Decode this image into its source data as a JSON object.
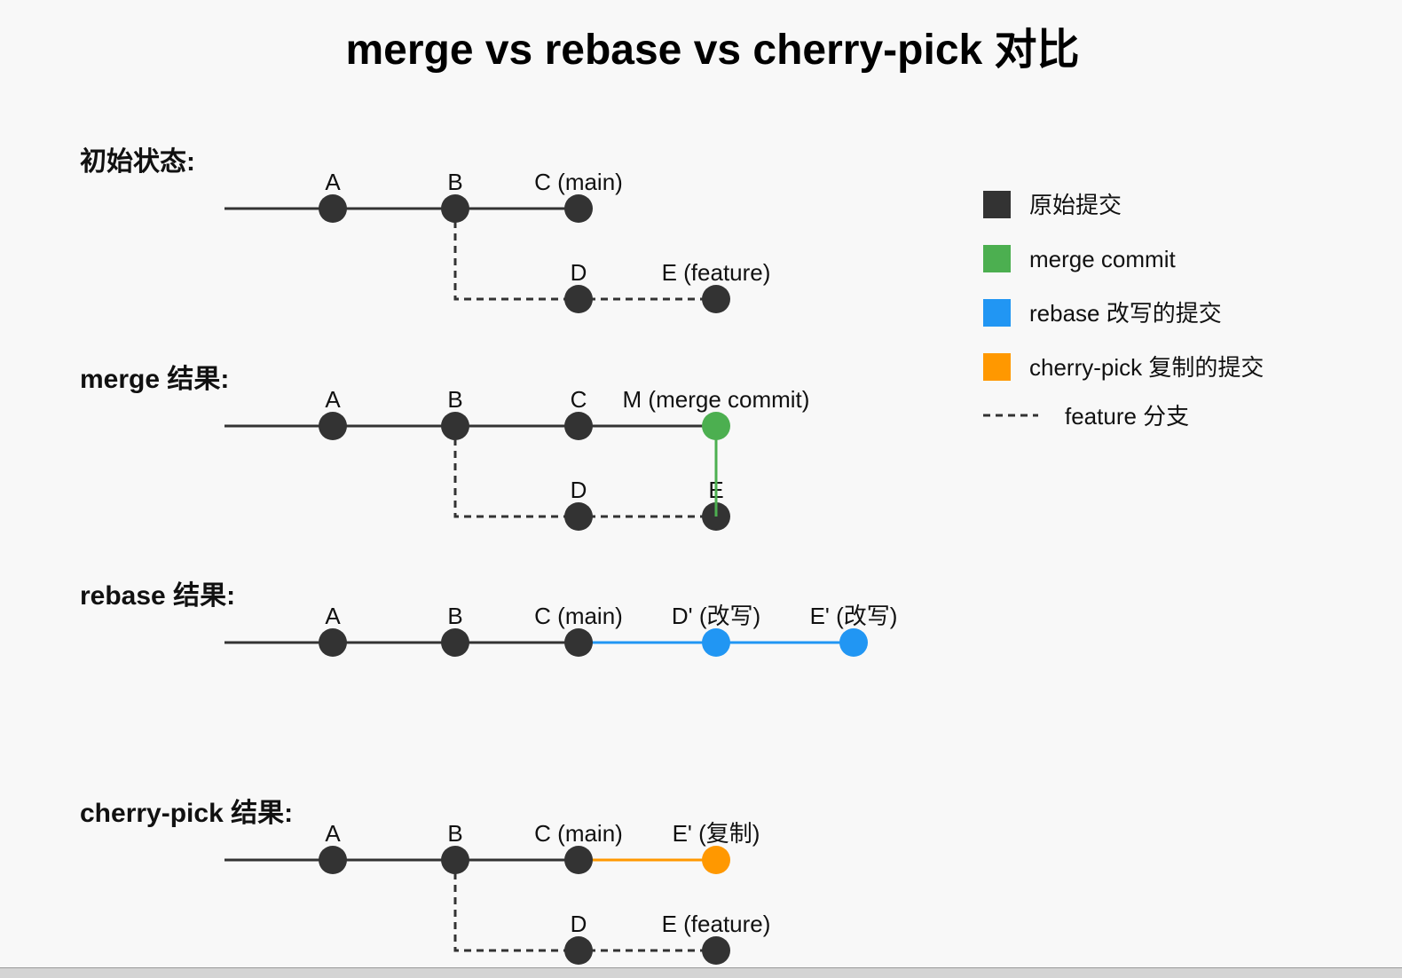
{
  "title": "merge vs rebase vs cherry-pick 对比",
  "colors": {
    "original": "#333333",
    "merge": "#4caf50",
    "rebase": "#2196f3",
    "cherry": "#ff9800",
    "background": "#f8f8f8"
  },
  "sections": [
    {
      "title": "初始状态:",
      "main": [
        {
          "id": "A",
          "label": "A",
          "kind": "original"
        },
        {
          "id": "B",
          "label": "B",
          "kind": "original"
        },
        {
          "id": "C",
          "label": "C (main)",
          "kind": "original"
        }
      ],
      "branch": [
        {
          "id": "D",
          "label": "D",
          "kind": "original"
        },
        {
          "id": "E",
          "label": "E (feature)",
          "kind": "original"
        }
      ]
    },
    {
      "title": "merge 结果:",
      "main": [
        {
          "id": "A",
          "label": "A",
          "kind": "original"
        },
        {
          "id": "B",
          "label": "B",
          "kind": "original"
        },
        {
          "id": "C",
          "label": "C",
          "kind": "original"
        },
        {
          "id": "M",
          "label": "M (merge commit)",
          "kind": "merge"
        }
      ],
      "branch": [
        {
          "id": "D",
          "label": "D",
          "kind": "original"
        },
        {
          "id": "E",
          "label": "E",
          "kind": "original"
        }
      ],
      "merge_link": true
    },
    {
      "title": "rebase 结果:",
      "main": [
        {
          "id": "A",
          "label": "A",
          "kind": "original"
        },
        {
          "id": "B",
          "label": "B",
          "kind": "original"
        },
        {
          "id": "C",
          "label": "C (main)",
          "kind": "original"
        },
        {
          "id": "D2",
          "label": "D' (改写)",
          "kind": "rebase"
        },
        {
          "id": "E2",
          "label": "E' (改写)",
          "kind": "rebase"
        }
      ],
      "branch": []
    },
    {
      "title": "cherry-pick 结果:",
      "main": [
        {
          "id": "A",
          "label": "A",
          "kind": "original"
        },
        {
          "id": "B",
          "label": "B",
          "kind": "original"
        },
        {
          "id": "C",
          "label": "C (main)",
          "kind": "original"
        },
        {
          "id": "E2",
          "label": "E' (复制)",
          "kind": "cherry"
        }
      ],
      "branch": [
        {
          "id": "D",
          "label": "D",
          "kind": "original"
        },
        {
          "id": "E",
          "label": "E (feature)",
          "kind": "original"
        }
      ]
    }
  ],
  "legend": [
    {
      "kind": "original",
      "label": "原始提交"
    },
    {
      "kind": "merge",
      "label": "merge commit"
    },
    {
      "kind": "rebase",
      "label": "rebase 改写的提交"
    },
    {
      "kind": "cherry",
      "label": "cherry-pick 复制的提交"
    },
    {
      "kind": "dashed",
      "label": "feature 分支"
    }
  ]
}
